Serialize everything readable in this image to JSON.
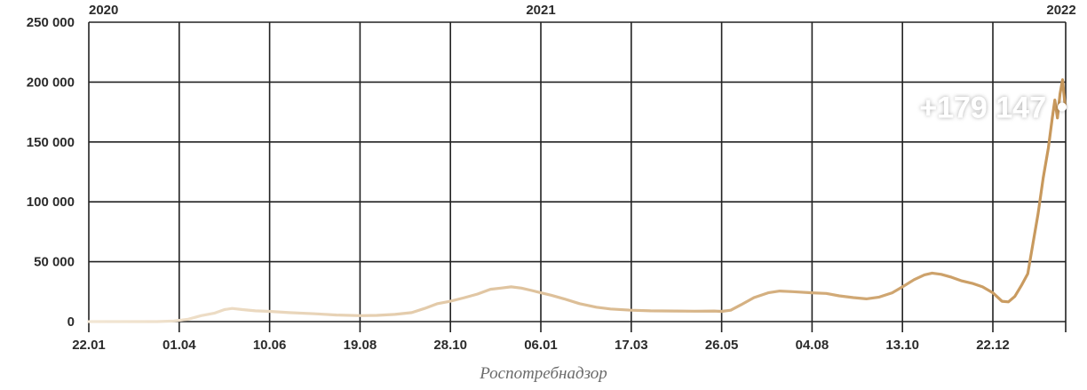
{
  "chart_data": {
    "type": "line",
    "title": "",
    "xlabel": "",
    "ylabel": "",
    "source": "Роспотребнадзор",
    "y_ticks": [
      "0",
      "50 000",
      "100 000",
      "150 000",
      "200 000",
      "250 000"
    ],
    "y_tick_values": [
      0,
      50000,
      100000,
      150000,
      200000,
      250000
    ],
    "ylim": [
      0,
      250000
    ],
    "x_ticks": [
      "22.01",
      "01.04",
      "10.06",
      "19.08",
      "28.10",
      "06.01",
      "17.03",
      "26.05",
      "04.08",
      "13.10",
      "22.12"
    ],
    "x_tick_dates": [
      "2020-01-22",
      "2020-04-01",
      "2020-06-10",
      "2020-08-19",
      "2020-10-28",
      "2021-01-06",
      "2021-03-17",
      "2021-05-26",
      "2021-08-04",
      "2021-10-13",
      "2021-12-22"
    ],
    "year_labels": [
      {
        "text": "2020",
        "date": "2020-01-22"
      },
      {
        "text": "2021",
        "date": "2021-01-06"
      },
      {
        "text": "2022",
        "date": "2022-02-13"
      }
    ],
    "grid": true,
    "line_colors": [
      "#f2e6d4",
      "#c7975a"
    ],
    "callout": {
      "text": "+179 147",
      "date": "2022-02-11",
      "value": 179147
    },
    "series": [
      {
        "dates": [
          "2020-01-22",
          "2020-03-15",
          "2020-03-28",
          "2020-04-08",
          "2020-04-18",
          "2020-04-28",
          "2020-05-06",
          "2020-05-12",
          "2020-05-20",
          "2020-05-30",
          "2020-06-10",
          "2020-06-25",
          "2020-07-15",
          "2020-08-01",
          "2020-08-19",
          "2020-09-01",
          "2020-09-15",
          "2020-09-28",
          "2020-10-08",
          "2020-10-18",
          "2020-10-28",
          "2020-11-08",
          "2020-11-18",
          "2020-11-28",
          "2020-12-06",
          "2020-12-14",
          "2020-12-22",
          "2020-12-30",
          "2021-01-06",
          "2021-01-14",
          "2021-01-24",
          "2021-02-05",
          "2021-02-18",
          "2021-03-01",
          "2021-03-17",
          "2021-04-01",
          "2021-04-20",
          "2021-05-05",
          "2021-05-20",
          "2021-05-26",
          "2021-06-02",
          "2021-06-10",
          "2021-06-20",
          "2021-07-01",
          "2021-07-10",
          "2021-07-20",
          "2021-08-04",
          "2021-08-15",
          "2021-08-25",
          "2021-09-05",
          "2021-09-15",
          "2021-09-25",
          "2021-10-05",
          "2021-10-13",
          "2021-10-22",
          "2021-10-30",
          "2021-11-05",
          "2021-11-12",
          "2021-11-20",
          "2021-11-28",
          "2021-12-06",
          "2021-12-14",
          "2021-12-22",
          "2021-12-29",
          "2022-01-03",
          "2022-01-08",
          "2022-01-13",
          "2022-01-18",
          "2022-01-22",
          "2022-01-26",
          "2022-01-30",
          "2022-02-03",
          "2022-02-06",
          "2022-02-08",
          "2022-02-10",
          "2022-02-12",
          "2022-02-14",
          "2022-02-16"
        ],
        "values": [
          0,
          0,
          500,
          2000,
          5000,
          7000,
          10000,
          11000,
          10000,
          9000,
          8500,
          7500,
          6500,
          5500,
          5000,
          5200,
          6000,
          7500,
          11000,
          15000,
          17000,
          20000,
          23000,
          27000,
          28000,
          29000,
          28000,
          26000,
          24000,
          22000,
          19000,
          15000,
          12000,
          10500,
          9500,
          9000,
          8800,
          8700,
          8800,
          8500,
          9500,
          14000,
          20000,
          24000,
          25500,
          25000,
          24000,
          23500,
          21500,
          20000,
          19000,
          20500,
          24000,
          29000,
          35000,
          39000,
          40500,
          39500,
          37000,
          34000,
          32000,
          29000,
          24000,
          17000,
          16500,
          21000,
          30000,
          40000,
          65000,
          90000,
          120000,
          145000,
          170000,
          185000,
          170000,
          190000,
          202000,
          179147
        ]
      }
    ]
  }
}
